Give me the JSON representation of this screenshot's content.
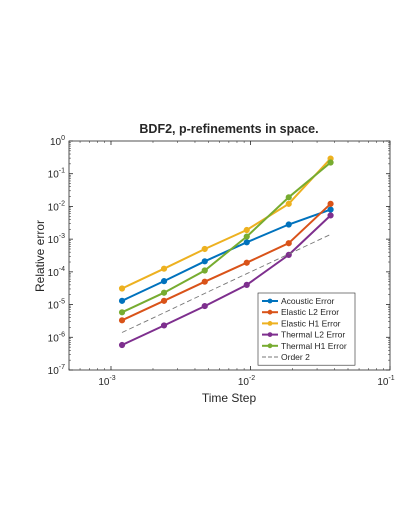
{
  "chart_data": {
    "type": "line",
    "title": "BDF2, p-refinements in space.",
    "xlabel": "Time Step",
    "ylabel": "Relative error",
    "xscale": "log",
    "yscale": "log",
    "xlim": [
      0.0005,
      0.1
    ],
    "ylim": [
      1e-07,
      1
    ],
    "x_ticks": [
      {
        "value": 0.001,
        "base": "10",
        "exp": "-3"
      },
      {
        "value": 0.01,
        "base": "10",
        "exp": "-2"
      },
      {
        "value": 0.1,
        "base": "10",
        "exp": "-1"
      }
    ],
    "y_ticks": [
      {
        "value": 1e-07,
        "base": "10",
        "exp": "-7"
      },
      {
        "value": 1e-06,
        "base": "10",
        "exp": "-6"
      },
      {
        "value": 1e-05,
        "base": "10",
        "exp": "-5"
      },
      {
        "value": 0.0001,
        "base": "10",
        "exp": "-4"
      },
      {
        "value": 0.001,
        "base": "10",
        "exp": "-3"
      },
      {
        "value": 0.01,
        "base": "10",
        "exp": "-2"
      },
      {
        "value": 0.1,
        "base": "10",
        "exp": "-1"
      },
      {
        "value": 1,
        "base": "10",
        "exp": "0"
      }
    ],
    "grid": false,
    "legend_position": "bottom-right",
    "x": [
      0.0012,
      0.0024,
      0.0047,
      0.0094,
      0.0188,
      0.0375
    ],
    "series": [
      {
        "name": "Acoustic Error",
        "color": "#0072BD",
        "style": "solid-marker",
        "values": [
          1.3e-05,
          5.2e-05,
          0.00021,
          0.0008,
          0.0028,
          0.008
        ]
      },
      {
        "name": "Elastic L2 Error",
        "color": "#D95319",
        "style": "solid-marker",
        "values": [
          3.3e-06,
          1.3e-05,
          5e-05,
          0.00019,
          0.00075,
          0.012
        ]
      },
      {
        "name": "Elastic H1 Error",
        "color": "#EDB120",
        "style": "solid-marker",
        "values": [
          3.1e-05,
          0.000125,
          0.0005,
          0.0019,
          0.012,
          0.29
        ]
      },
      {
        "name": "Thermal L2 Error",
        "color": "#7E2F8E",
        "style": "solid-marker",
        "values": [
          5.8e-07,
          2.3e-06,
          9e-06,
          4e-05,
          0.00033,
          0.0053
        ]
      },
      {
        "name": "Thermal H1 Error",
        "color": "#77AC30",
        "style": "solid-marker",
        "values": [
          5.8e-06,
          2.3e-05,
          0.00011,
          0.0012,
          0.019,
          0.22
        ]
      },
      {
        "name": "Order 2",
        "color": "#777777",
        "style": "dashed",
        "values": [
          1.4e-06,
          5.6e-06,
          2.2e-05,
          8.8e-05,
          0.00035,
          0.0014
        ]
      }
    ]
  }
}
